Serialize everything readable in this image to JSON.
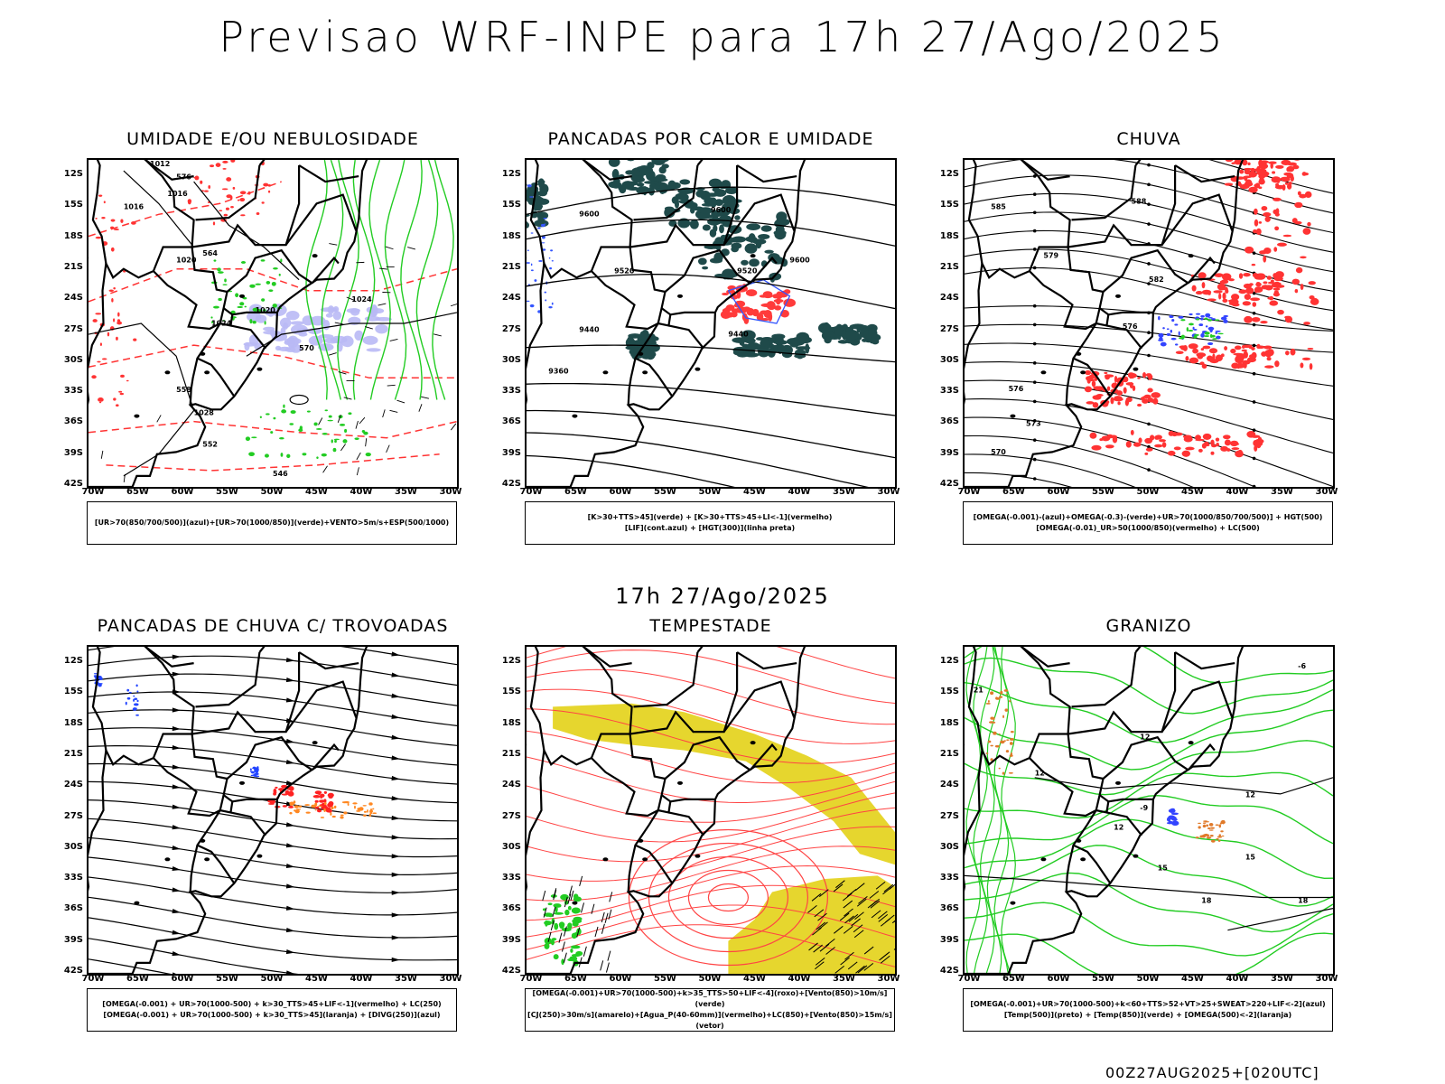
{
  "header": {
    "title": "Previsao WRF-INPE  para 17h 27/Ago/2025"
  },
  "mid_label": "17h 27/Ago/2025",
  "footer_code": "00Z27AUG2025+[020UTC]",
  "axes": {
    "lat_labels": [
      "12S",
      "15S",
      "18S",
      "21S",
      "24S",
      "27S",
      "30S",
      "33S",
      "36S",
      "39S",
      "42S"
    ],
    "lon_labels": [
      "70W",
      "65W",
      "60W",
      "55W",
      "50W",
      "45W",
      "40W",
      "35W",
      "30W"
    ]
  },
  "panels": [
    {
      "id": "umidade",
      "title": "UMIDADE E/OU NEBULOSIDADE",
      "legend_lines": [
        "[UR>70(850/700/500)](azul)+[UR>70(1000/850)](verde)+VENTO>5m/s+ESP(500/1000)"
      ],
      "contour_labels": [
        "1012",
        "1016",
        "1020",
        "1024",
        "1028",
        "1016",
        "1020",
        "1024",
        "570",
        "576",
        "564",
        "558",
        "552",
        "546"
      ],
      "colors": {
        "red": "#ff3333",
        "green": "#22cc22",
        "blue": "#9999ff",
        "black": "#000000"
      }
    },
    {
      "id": "pancadas-calor",
      "title": "PANCADAS POR CALOR E UMIDADE",
      "legend_lines": [
        "[K>30+TTS>45](verde) + [K>30+TTS>45+LI<-1](vermelho)",
        "[LIF](cont.azul) + [HGT(300)](linha preta)"
      ],
      "contour_labels": [
        "9600",
        "9520",
        "9440",
        "9360",
        "9600",
        "9520",
        "9440",
        "9600"
      ],
      "colors": {
        "dark": "#1f4a4a",
        "red": "#ff3b3b",
        "blue": "#3355ff"
      }
    },
    {
      "id": "chuva",
      "title": "CHUVA",
      "legend_lines": [
        "[OMEGA(-0.001)-(azul)+OMEGA(-0.3)-(verde)+UR>70(1000/850/700/500)] + HGT(500)",
        "[OMEGA(-0.01)_UR>50(1000/850)(vermelho) + LC(500)"
      ],
      "contour_labels": [
        "588",
        "582",
        "576",
        "573",
        "570",
        "585",
        "579",
        "576"
      ],
      "colors": {
        "red": "#ff3333",
        "blue": "#3344ff",
        "green": "#22cc22"
      }
    },
    {
      "id": "trovoadas",
      "title": "PANCADAS DE CHUVA C/ TROVOADAS",
      "legend_lines": [
        "[OMEGA(-0.001) + UR>70(1000-500) + k>30_TTS>45+LIF<-1](vermelho) + LC(250)",
        "[OMEGA(-0.001) + UR>70(1000-500) + k>30_TTS>45](laranja) + [DIVG(250)](azul)"
      ],
      "colors": {
        "red": "#ff2222",
        "orange": "#ff8822",
        "blue": "#2244ff"
      }
    },
    {
      "id": "tempestade",
      "title": "TEMPESTADE",
      "legend_lines": [
        "[OMEGA(-0.001)+UR>70(1000-500)+k>35_TTS>50+LIF<-4](roxo)+[Vento(850)>10m/s](verde)",
        "[CJ(250)>30m/s](amarelo)+[Agua_P(40-60mm)](vermelho)+LC(850)+[Vento(850)>15m/s](vetor)"
      ],
      "colors": {
        "yellow": "#e6d62e",
        "red": "#ff4444",
        "green": "#22cc22"
      }
    },
    {
      "id": "granizo",
      "title": "GRANIZO",
      "legend_lines": [
        "[OMEGA(-0.001)+UR>70(1000-500)+k<60+TTS>52+VT>25+SWEAT>220+LIF<-2](azul)",
        "[Temp(500)](preto) + [Temp(850)](verde) + [OMEGA(500)<-2](laranja)"
      ],
      "contour_labels": [
        "12",
        "12",
        "12",
        "12",
        "15",
        "15",
        "18",
        "18",
        "21",
        "-9",
        "-6"
      ],
      "colors": {
        "green": "#22cc22",
        "orange": "#e07a2a",
        "blue": "#3344ff"
      }
    }
  ]
}
